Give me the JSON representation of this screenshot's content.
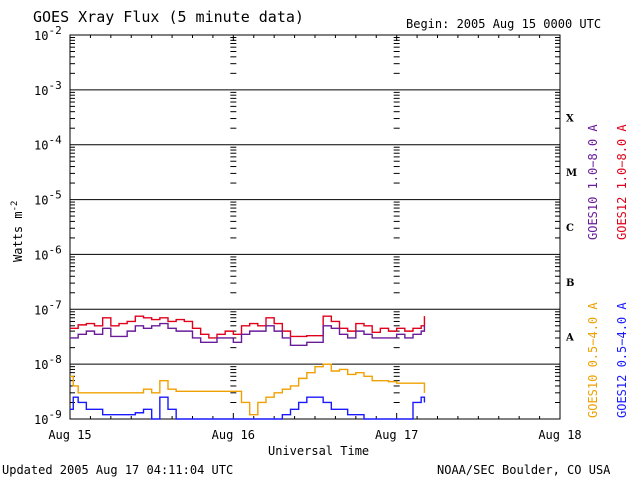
{
  "header": {
    "title": "GOES Xray Flux (5 minute data)",
    "begin": "Begin:  2005 Aug 15 0000 UTC"
  },
  "footer": {
    "updated": "Updated 2005 Aug 17 04:11:04 UTC",
    "credit": "NOAA/SEC Boulder, CO USA"
  },
  "axes": {
    "xlabel": "Universal Time",
    "ylabel": "Watts m",
    "ylabel_sup": "-2",
    "y_ticks": [
      {
        "base": "10",
        "exp": "-2"
      },
      {
        "base": "10",
        "exp": "-3"
      },
      {
        "base": "10",
        "exp": "-4"
      },
      {
        "base": "10",
        "exp": "-5"
      },
      {
        "base": "10",
        "exp": "-6"
      },
      {
        "base": "10",
        "exp": "-7"
      },
      {
        "base": "10",
        "exp": "-8"
      },
      {
        "base": "10",
        "exp": "-9"
      }
    ],
    "x_ticks": [
      "Aug 15",
      "Aug 16",
      "Aug 17",
      "Aug 18"
    ],
    "flare_classes": [
      "X",
      "M",
      "C",
      "B",
      "A"
    ]
  },
  "legend": {
    "right_top": [
      {
        "label": "GOES10 1.0−8.0 A",
        "color": "#6a1b9a"
      },
      {
        "label": "GOES12 1.0−8.0 A",
        "color": "#e0001b"
      }
    ],
    "right_bottom": [
      {
        "label": "GOES10 0.5−4.0 A",
        "color": "#f0a000"
      },
      {
        "label": "GOES12 0.5−4.0 A",
        "color": "#1a1aff"
      }
    ]
  },
  "chart_data": {
    "type": "line",
    "title": "GOES Xray Flux (5 minute data)",
    "xlabel": "Universal Time",
    "ylabel": "Watts m-2",
    "y_scale": "log",
    "ylim": [
      1e-09,
      0.01
    ],
    "xlim_days": [
      "2005-08-15",
      "2005-08-18"
    ],
    "x_unit": "days since 2005 Aug 15 0000 UTC",
    "grid": "horizontal lines at each decade",
    "series": [
      {
        "name": "GOES12 1.0−8.0 A",
        "color": "#e0001b",
        "x": [
          0,
          0.05,
          0.1,
          0.15,
          0.2,
          0.25,
          0.3,
          0.35,
          0.4,
          0.45,
          0.5,
          0.55,
          0.6,
          0.65,
          0.7,
          0.75,
          0.8,
          0.85,
          0.9,
          0.95,
          1.0,
          1.05,
          1.1,
          1.15,
          1.2,
          1.25,
          1.3,
          1.35,
          1.4,
          1.45,
          1.5,
          1.55,
          1.6,
          1.65,
          1.7,
          1.75,
          1.8,
          1.85,
          1.9,
          1.95,
          2.0,
          2.05,
          2.1,
          2.15,
          2.17
        ],
        "y": [
          4.5e-08,
          5.2e-08,
          5.5e-08,
          5e-08,
          7e-08,
          5e-08,
          5.5e-08,
          6e-08,
          7.5e-08,
          7e-08,
          6.5e-08,
          7e-08,
          6e-08,
          6.5e-08,
          6e-08,
          4.5e-08,
          3.5e-08,
          3e-08,
          3.5e-08,
          4e-08,
          3.5e-08,
          5e-08,
          5.5e-08,
          5e-08,
          7e-08,
          5.5e-08,
          4e-08,
          3.2e-08,
          3.2e-08,
          3.3e-08,
          3.3e-08,
          7.5e-08,
          6e-08,
          4.5e-08,
          4e-08,
          5.5e-08,
          5e-08,
          3.8e-08,
          4.5e-08,
          4e-08,
          4.5e-08,
          4e-08,
          4.5e-08,
          5e-08,
          7.5e-08
        ]
      },
      {
        "name": "GOES10 1.0−8.0 A",
        "color": "#6a1b9a",
        "x": [
          0,
          0.05,
          0.1,
          0.15,
          0.2,
          0.25,
          0.3,
          0.35,
          0.4,
          0.45,
          0.5,
          0.55,
          0.6,
          0.65,
          0.7,
          0.75,
          0.8,
          0.85,
          0.9,
          0.95,
          1.0,
          1.05,
          1.1,
          1.15,
          1.2,
          1.25,
          1.3,
          1.35,
          1.4,
          1.45,
          1.5,
          1.55,
          1.6,
          1.65,
          1.7,
          1.75,
          1.8,
          1.85,
          1.9,
          1.95,
          2.0,
          2.05,
          2.1,
          2.15,
          2.17
        ],
        "y": [
          3e-08,
          3.5e-08,
          4e-08,
          3.5e-08,
          4.5e-08,
          3.2e-08,
          3.2e-08,
          4e-08,
          5e-08,
          4.5e-08,
          5e-08,
          5.5e-08,
          4.5e-08,
          4e-08,
          4e-08,
          3e-08,
          2.5e-08,
          2.5e-08,
          3e-08,
          3e-08,
          2.5e-08,
          3.5e-08,
          4e-08,
          4e-08,
          5e-08,
          4e-08,
          3e-08,
          2.2e-08,
          2.2e-08,
          2.5e-08,
          2.5e-08,
          5e-08,
          4.5e-08,
          3.5e-08,
          3e-08,
          4e-08,
          3.5e-08,
          3e-08,
          3e-08,
          3e-08,
          3.5e-08,
          3e-08,
          3.5e-08,
          4e-08,
          5e-08
        ]
      },
      {
        "name": "GOES10 0.5−4.0 A",
        "color": "#f0a000",
        "x": [
          0,
          0.02,
          0.05,
          0.1,
          0.2,
          0.3,
          0.4,
          0.45,
          0.5,
          0.55,
          0.6,
          0.65,
          0.7,
          0.75,
          0.8,
          0.85,
          0.9,
          0.95,
          1.0,
          1.05,
          1.1,
          1.15,
          1.2,
          1.25,
          1.3,
          1.35,
          1.4,
          1.45,
          1.5,
          1.55,
          1.6,
          1.65,
          1.7,
          1.75,
          1.8,
          1.85,
          1.9,
          1.95,
          2.0,
          2.05,
          2.1,
          2.15,
          2.17
        ],
        "y": [
          6e-09,
          4e-09,
          3e-09,
          3e-09,
          3e-09,
          3e-09,
          3e-09,
          3.5e-09,
          3e-09,
          5e-09,
          3.5e-09,
          3.2e-09,
          3.2e-09,
          3.2e-09,
          3.2e-09,
          3.2e-09,
          3.2e-09,
          3.2e-09,
          3.2e-09,
          2e-09,
          1.2e-09,
          2e-09,
          2.5e-09,
          3e-09,
          3.5e-09,
          4e-09,
          5.5e-09,
          7e-09,
          9e-09,
          1e-08,
          7.5e-09,
          8e-09,
          6.5e-09,
          7e-09,
          6e-09,
          5e-09,
          5e-09,
          4.8e-09,
          4.5e-09,
          4.5e-09,
          4.5e-09,
          4.5e-09,
          3e-09
        ]
      },
      {
        "name": "GOES12 0.5−4.0 A",
        "color": "#1a1aff",
        "x": [
          0,
          0.02,
          0.05,
          0.1,
          0.2,
          0.3,
          0.4,
          0.45,
          0.5,
          0.55,
          0.6,
          0.65,
          0.7,
          0.75,
          0.8,
          0.85,
          0.9,
          0.95,
          1.0,
          1.05,
          1.1,
          1.15,
          1.2,
          1.25,
          1.3,
          1.35,
          1.4,
          1.45,
          1.5,
          1.55,
          1.6,
          1.65,
          1.7,
          1.75,
          1.8,
          1.85,
          1.9,
          1.95,
          2.0,
          2.05,
          2.1,
          2.15,
          2.17
        ],
        "y": [
          1.5e-09,
          2.5e-09,
          2e-09,
          1.5e-09,
          1.2e-09,
          1.2e-09,
          1.3e-09,
          1.5e-09,
          1e-09,
          2.5e-09,
          1.5e-09,
          1e-09,
          1e-09,
          1e-09,
          1e-09,
          1e-09,
          1e-09,
          1e-09,
          1e-09,
          1e-09,
          1e-09,
          1e-09,
          1e-09,
          1e-09,
          1.2e-09,
          1.5e-09,
          2e-09,
          2.5e-09,
          2.5e-09,
          2e-09,
          1.5e-09,
          1.5e-09,
          1.2e-09,
          1.2e-09,
          1e-09,
          1e-09,
          1e-09,
          1e-09,
          1e-09,
          1e-09,
          2e-09,
          2.5e-09,
          2e-09
        ]
      }
    ]
  }
}
